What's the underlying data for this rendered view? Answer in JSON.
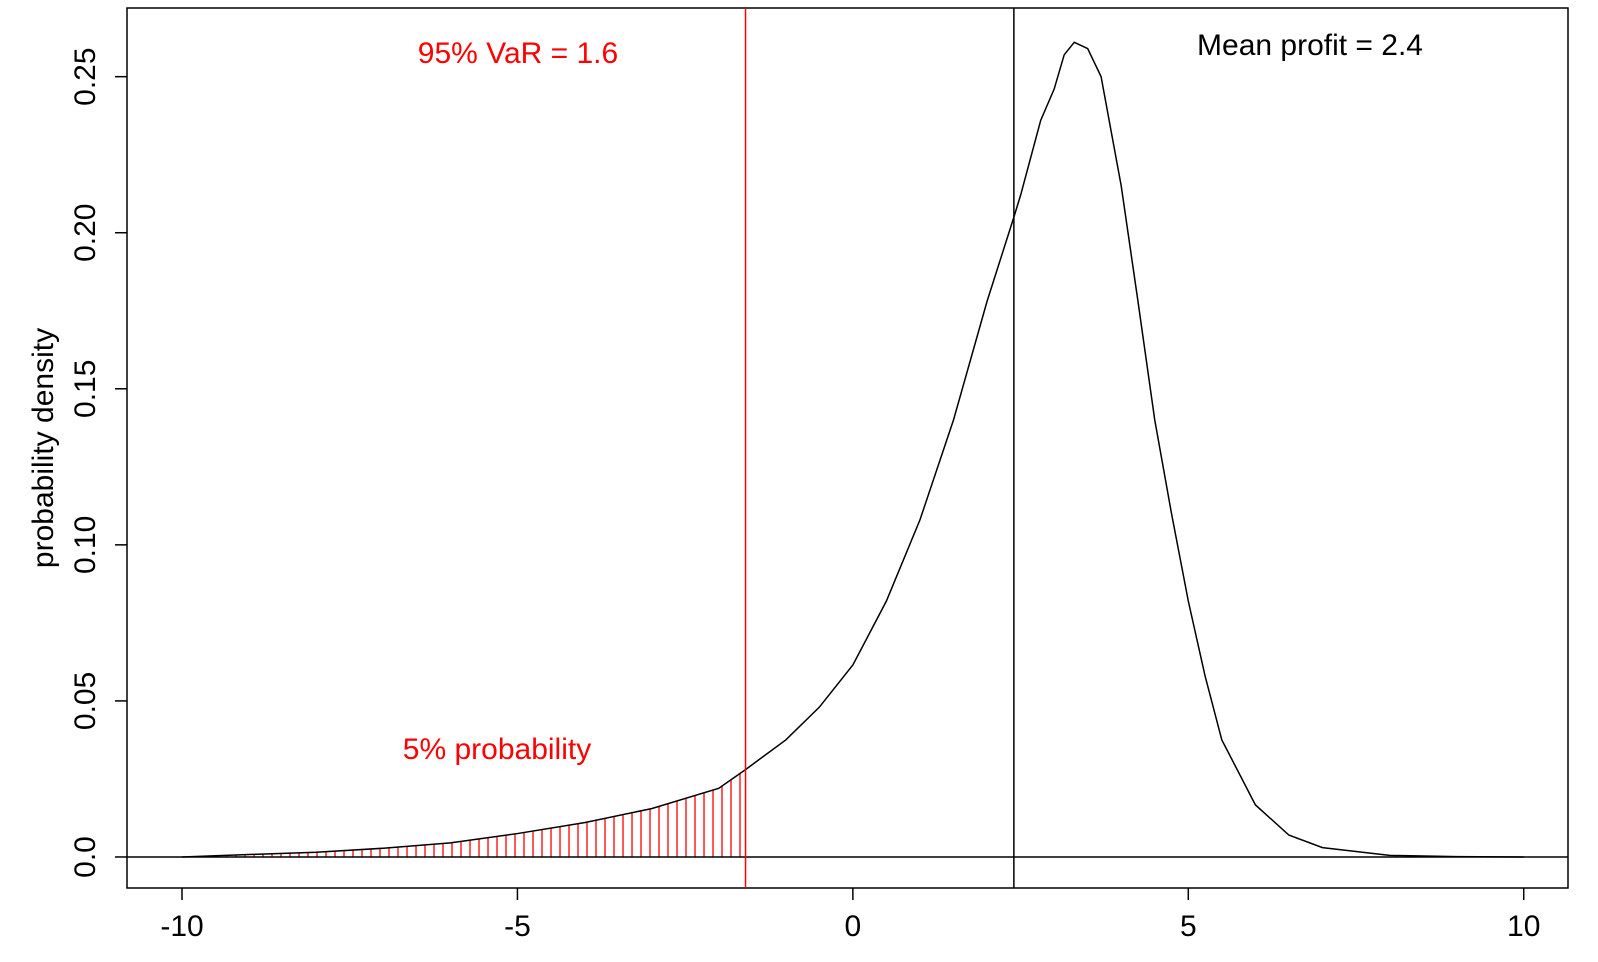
{
  "chart_data": {
    "type": "line",
    "y_label": "probability density",
    "x": [
      -10,
      -9,
      -8,
      -7,
      -6,
      -5,
      -4,
      -3,
      -2,
      -1.6,
      -1,
      -0.5,
      0,
      0.5,
      1,
      1.5,
      2,
      2.4,
      2.5,
      2.8,
      3,
      3.15,
      3.3,
      3.5,
      3.7,
      4,
      4.25,
      4.5,
      4.75,
      5,
      5.25,
      5.5,
      6,
      6.5,
      7,
      8,
      9,
      10
    ],
    "series": [
      {
        "name": "density",
        "color": "#000000",
        "values": [
          0.0,
          0.0008,
          0.0015,
          0.0028,
          0.0045,
          0.0075,
          0.011,
          0.0155,
          0.022,
          0.028,
          0.0375,
          0.048,
          0.0615,
          0.082,
          0.108,
          0.14,
          0.178,
          0.205,
          0.212,
          0.236,
          0.246,
          0.257,
          0.261,
          0.259,
          0.25,
          0.215,
          0.178,
          0.14,
          0.11,
          0.082,
          0.058,
          0.0375,
          0.0167,
          0.007,
          0.003,
          0.0005,
          0.0001,
          0.0
        ]
      }
    ],
    "xlim": [
      -10.82,
      10.66
    ],
    "ylim": [
      -0.00994,
      0.272
    ],
    "xticks": [
      -10,
      -5,
      0,
      5,
      10
    ],
    "yticks": [
      {
        "value": 0,
        "label": "0.0"
      },
      0.05,
      {
        "value": 0.1,
        "label": "0.10"
      },
      0.15,
      {
        "value": 0.2,
        "label": "0.20"
      },
      0.25
    ],
    "vlines": [
      {
        "x": -1.6,
        "color": "#ff0000"
      },
      {
        "x": 2.4,
        "color": "#000000"
      }
    ],
    "hlines": [
      0
    ],
    "tail_color": "#ff0000",
    "annotations": [
      {
        "text": "95% VaR = 1.6",
        "color": "#ff0000"
      },
      {
        "text": "Mean profit = 2.4",
        "color": "#000000"
      },
      {
        "text": "5% probability",
        "color": "#ff0000"
      }
    ]
  }
}
